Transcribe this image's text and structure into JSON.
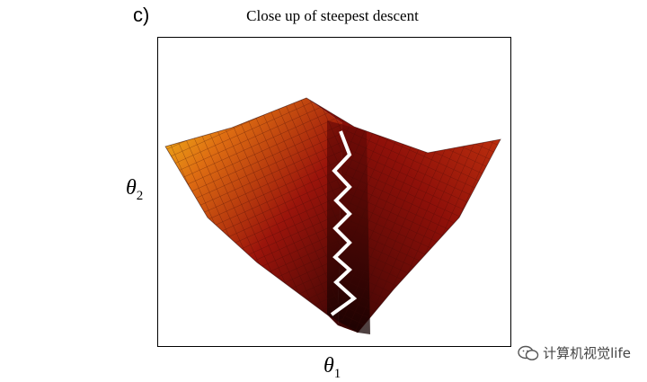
{
  "figure": {
    "panel_label": "c)",
    "title": "Close up of steepest descent",
    "y_axis_label": "θ",
    "y_axis_sub": "2",
    "x_axis_label": "θ",
    "x_axis_sub": "1"
  },
  "colors": {
    "surface_low": "#2a0303",
    "surface_mid": "#a8120a",
    "surface_high": "#f0a417",
    "path": "#ffffff"
  },
  "watermark": {
    "text": "计算机视觉life",
    "icon": "wechat-icon"
  }
}
